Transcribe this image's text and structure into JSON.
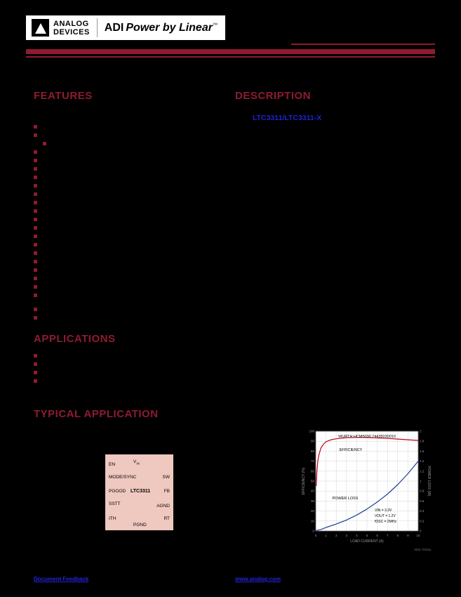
{
  "page": {
    "bg": "#000000",
    "accent_red": "#8e1b30",
    "link_blue": "#2121cf"
  },
  "header": {
    "logo": {
      "line1": "ANALOG",
      "line2": "DEVICES",
      "brand_adi": "ADI",
      "brand_power": "Power by Linear",
      "brand_tm": "™"
    }
  },
  "sections": {
    "features": {
      "title": "FEATURES",
      "items": [
        {
          "text": ""
        },
        {
          "text": ""
        },
        {
          "text": "",
          "indent": true
        },
        {
          "text": ""
        },
        {
          "text": ""
        },
        {
          "text": ""
        },
        {
          "text": ""
        },
        {
          "text": ""
        },
        {
          "text": ""
        },
        {
          "text": ""
        },
        {
          "text": ""
        },
        {
          "text": ""
        },
        {
          "text": ""
        },
        {
          "text": ""
        },
        {
          "text": ""
        },
        {
          "text": ""
        },
        {
          "text": ""
        },
        {
          "text": ""
        },
        {
          "text": ""
        },
        {
          "text": ""
        },
        {
          "text": ""
        },
        {
          "text": "",
          "gap": true
        },
        {
          "text": ""
        }
      ]
    },
    "description": {
      "title": "DESCRIPTION",
      "part_link": "LTC3311/LTC3311-X"
    },
    "applications": {
      "title": "APPLICATIONS",
      "items": [
        {
          "text": ""
        },
        {
          "text": ""
        },
        {
          "text": ""
        },
        {
          "text": ""
        }
      ]
    },
    "typical_application": {
      "title": "TYPICAL APPLICATION"
    }
  },
  "schematic": {
    "part_label": "LTC3311",
    "ic_fill": "#efc8c0",
    "pins": {
      "en": "EN",
      "vin_prefix": "V",
      "vin_sub": "IN",
      "mode_sync": "MODE/SYNC",
      "sw": "SW",
      "pgood": "PGOOD",
      "fb": "FB",
      "sstt": "SSTT",
      "agnd": "AGND",
      "ith": "ITH",
      "pgnd": "PGND",
      "rt": "RT"
    }
  },
  "chart_data": {
    "type": "line",
    "title": "WURTH HCM5030 74435030010",
    "xlabel": "LOAD CURRENT (A)",
    "ylabel_left": "EFFICIENCY (%)",
    "ylabel_right": "POWER LOSS (W)",
    "xlim": [
      0,
      10
    ],
    "xticks": [
      0,
      1,
      2,
      3,
      4,
      5,
      6,
      7,
      8,
      9,
      10
    ],
    "ylim_left": [
      0,
      100
    ],
    "yticks_left": [
      0,
      10,
      20,
      30,
      40,
      50,
      60,
      70,
      80,
      90,
      100
    ],
    "ylim_right": [
      0,
      2.0
    ],
    "yticks_right": [
      0,
      0.2,
      0.4,
      0.6,
      0.8,
      1.0,
      1.2,
      1.4,
      1.6,
      1.8,
      2.0
    ],
    "grid": true,
    "series": [
      {
        "name": "EFFICIENCY",
        "axis": "left",
        "color": "#c00018",
        "x": [
          0.05,
          0.1,
          0.2,
          0.3,
          0.5,
          0.75,
          1,
          1.5,
          2,
          3,
          4,
          5,
          6,
          7,
          8,
          9,
          10
        ],
        "y": [
          45,
          58,
          70,
          76,
          83,
          87,
          89.5,
          91.5,
          92.5,
          93.5,
          93.8,
          93.7,
          93.3,
          92.8,
          92.2,
          91.5,
          90.8
        ]
      },
      {
        "name": "POWER LOSS",
        "axis": "right",
        "color": "#1c3f94",
        "x": [
          0.05,
          0.5,
          1,
          2,
          3,
          4,
          5,
          6,
          7,
          8,
          9,
          10
        ],
        "y": [
          0.01,
          0.03,
          0.07,
          0.14,
          0.22,
          0.32,
          0.44,
          0.58,
          0.74,
          0.93,
          1.15,
          1.4
        ]
      }
    ],
    "annotations": [
      "VIN = 3.3V",
      "VOUT = 1.2V",
      "fOSC = 2MHz"
    ],
    "note": "3311 TA01a"
  },
  "footer": {
    "feedback": "Document Feedback",
    "website": "www.analog.com"
  }
}
